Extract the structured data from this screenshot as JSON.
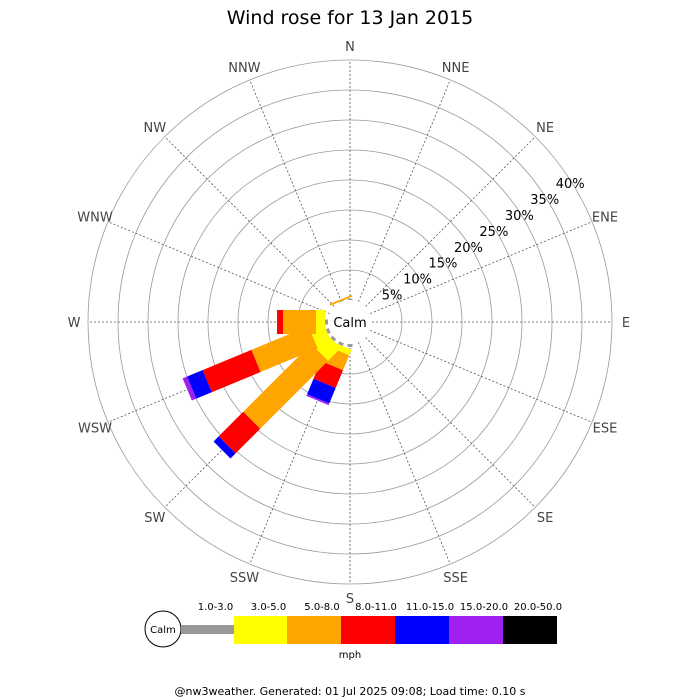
{
  "chart_data": {
    "type": "wind-rose",
    "title": "Wind rose for 13 Jan 2015",
    "center_label": "Calm",
    "directions": [
      "N",
      "NNE",
      "NE",
      "ENE",
      "E",
      "ESE",
      "SE",
      "SSE",
      "S",
      "SSW",
      "SW",
      "WSW",
      "W",
      "WNW",
      "NW",
      "NNW"
    ],
    "radial_ticks": [
      "5%",
      "10%",
      "15%",
      "20%",
      "25%",
      "30%",
      "35%",
      "40%"
    ],
    "radial_values": [
      5,
      10,
      15,
      20,
      25,
      30,
      35,
      40
    ],
    "rmax": 40,
    "legend": {
      "unit": "mph",
      "calm_label": "Calm",
      "bins": [
        {
          "label": "1.0-3.0",
          "color": "#999999"
        },
        {
          "label": "3.0-5.0",
          "color": "#ffff00"
        },
        {
          "label": "5.0-8.0",
          "color": "#ffa500"
        },
        {
          "label": "8.0-11.0",
          "color": "#ff0000"
        },
        {
          "label": "11.0-15.0",
          "color": "#0000ff"
        },
        {
          "label": "15.0-20.0",
          "color": "#a020f0"
        },
        {
          "label": "20.0-50.0",
          "color": "#000000"
        }
      ]
    },
    "series": [
      {
        "direction": "NNW",
        "values": [
          0.1,
          0.0,
          0.3,
          0,
          0,
          0,
          0
        ]
      },
      {
        "direction": "N",
        "values": [
          0.2,
          0,
          0,
          0,
          0,
          0,
          0
        ]
      },
      {
        "direction": "S",
        "values": [
          0.5,
          0,
          0,
          0,
          0,
          0,
          0
        ]
      },
      {
        "direction": "SSW",
        "values": [
          0.5,
          1.0,
          2.7,
          3.2,
          2.8,
          0.3,
          0
        ]
      },
      {
        "direction": "SW",
        "values": [
          0.5,
          3.0,
          16.0,
          5.8,
          1.2,
          0,
          0
        ]
      },
      {
        "direction": "WSW",
        "values": [
          0.5,
          2.5,
          10.3,
          8.8,
          2.8,
          0.8,
          0
        ]
      },
      {
        "direction": "W",
        "values": [
          0.5,
          1.5,
          5.5,
          1.0,
          0,
          0,
          0
        ]
      }
    ]
  },
  "footer": "@nw3weather. Generated: 01 Jul 2025 09:08; Load time: 0.10 s"
}
